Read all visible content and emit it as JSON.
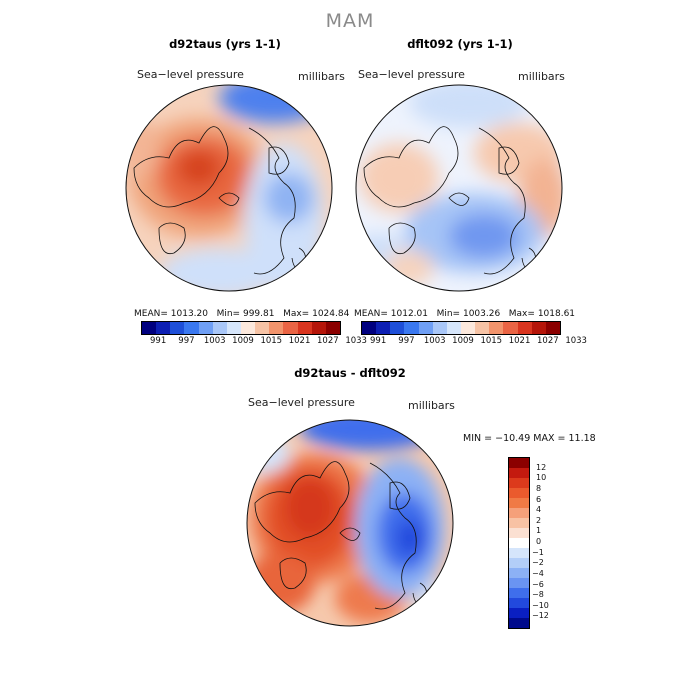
{
  "season": "MAM",
  "panels": [
    {
      "title": "d92taus (yrs 1-1)",
      "variable": "Sea−level pressure",
      "units": "millibars",
      "stats": {
        "mean": "1013.20",
        "min": "999.81",
        "max": "1024.84"
      }
    },
    {
      "title": "dflt092 (yrs 1-1)",
      "variable": "Sea−level pressure",
      "units": "millibars",
      "stats": {
        "mean": "1012.01",
        "min": "1003.26",
        "max": "1018.61"
      }
    }
  ],
  "stat_labels": {
    "mean": "MEAN=",
    "min": "Min=",
    "max": "Max="
  },
  "abs_colorbar": {
    "colors": [
      "#00007f",
      "#0d1fb3",
      "#1e4fd8",
      "#3a78f0",
      "#6f9ff5",
      "#a9c7f8",
      "#d6e6fb",
      "#fbe8dc",
      "#f6c3a5",
      "#f2946c",
      "#ea6444",
      "#d9351f",
      "#b51509",
      "#8b0000"
    ],
    "ticks": [
      "991",
      "997",
      "1003",
      "1009",
      "1015",
      "1021",
      "1027",
      "1033"
    ]
  },
  "diff_panel": {
    "title": "d92taus - dflt092",
    "variable": "Sea−level pressure",
    "units": "millibars",
    "minmax": "MIN = −10.49 MAX =  11.18"
  },
  "diff_colorbar": {
    "colors": [
      "#8b0000",
      "#c41a0f",
      "#dc3a1c",
      "#ea5a2d",
      "#f07a45",
      "#f5a07a",
      "#f8c2a4",
      "#fbe0d2",
      "#ffffff",
      "#d5e5fb",
      "#b3cef8",
      "#8cb1f5",
      "#6a94f2",
      "#3f6eec",
      "#2249dd",
      "#0a1fc2",
      "#000a8c"
    ],
    "labels": [
      "12",
      "10",
      "8",
      "6",
      "4",
      "2",
      "1",
      "0",
      "−1",
      "−2",
      "−4",
      "−6",
      "−8",
      "−10",
      "−12"
    ]
  },
  "colors": {
    "positive": "#e8562f",
    "negative": "#3a6ff0",
    "coast": "#111111"
  }
}
